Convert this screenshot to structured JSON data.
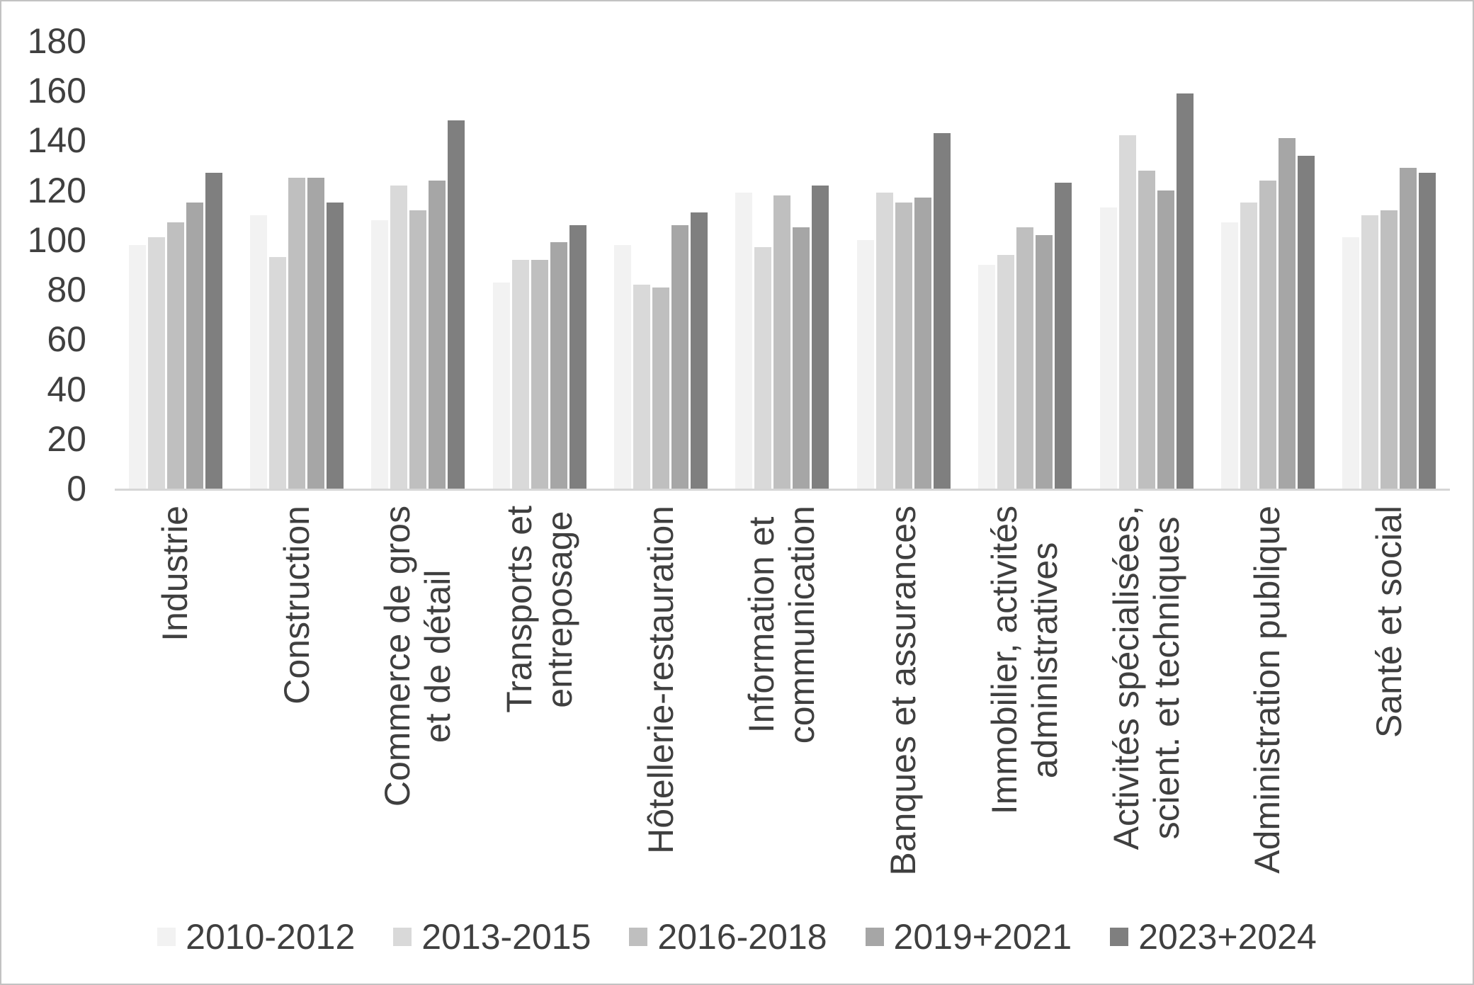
{
  "chart_data": {
    "type": "bar",
    "title": "",
    "xlabel": "",
    "ylabel": "",
    "ylim": [
      0,
      180
    ],
    "ytick_step": 20,
    "grid": false,
    "legend_position": "bottom",
    "axis_line_color": "#d6d6d6",
    "background_color": "#ffffff",
    "categories": [
      "Industrie",
      "Construction",
      "Commerce de gros\net de détail",
      "Transports et\nentreposage",
      "Hôtellerie-restauration",
      "Information et\ncommunication",
      "Banques et assurances",
      "Immobilier, activités\nadministratives",
      "Activités spécialisées,\nscient. et techniques",
      "Administration publique",
      "Santé et social"
    ],
    "series": [
      {
        "name": "2010-2012",
        "color": "#f2f2f2",
        "values": [
          98,
          110,
          108,
          83,
          98,
          119,
          100,
          90,
          113,
          107,
          101
        ]
      },
      {
        "name": "2013-2015",
        "color": "#d9d9d9",
        "values": [
          101,
          93,
          122,
          92,
          82,
          97,
          119,
          94,
          142,
          115,
          110
        ]
      },
      {
        "name": "2016-2018",
        "color": "#bfbfbf",
        "values": [
          107,
          125,
          112,
          92,
          81,
          118,
          115,
          105,
          128,
          124,
          112
        ]
      },
      {
        "name": "2019+2021",
        "color": "#a6a6a6",
        "values": [
          115,
          125,
          124,
          99,
          106,
          105,
          117,
          102,
          120,
          141,
          129
        ]
      },
      {
        "name": "2023+2024",
        "color": "#7f7f7f",
        "values": [
          127,
          115,
          148,
          106,
          111,
          122,
          143,
          123,
          159,
          134,
          127
        ]
      }
    ]
  }
}
